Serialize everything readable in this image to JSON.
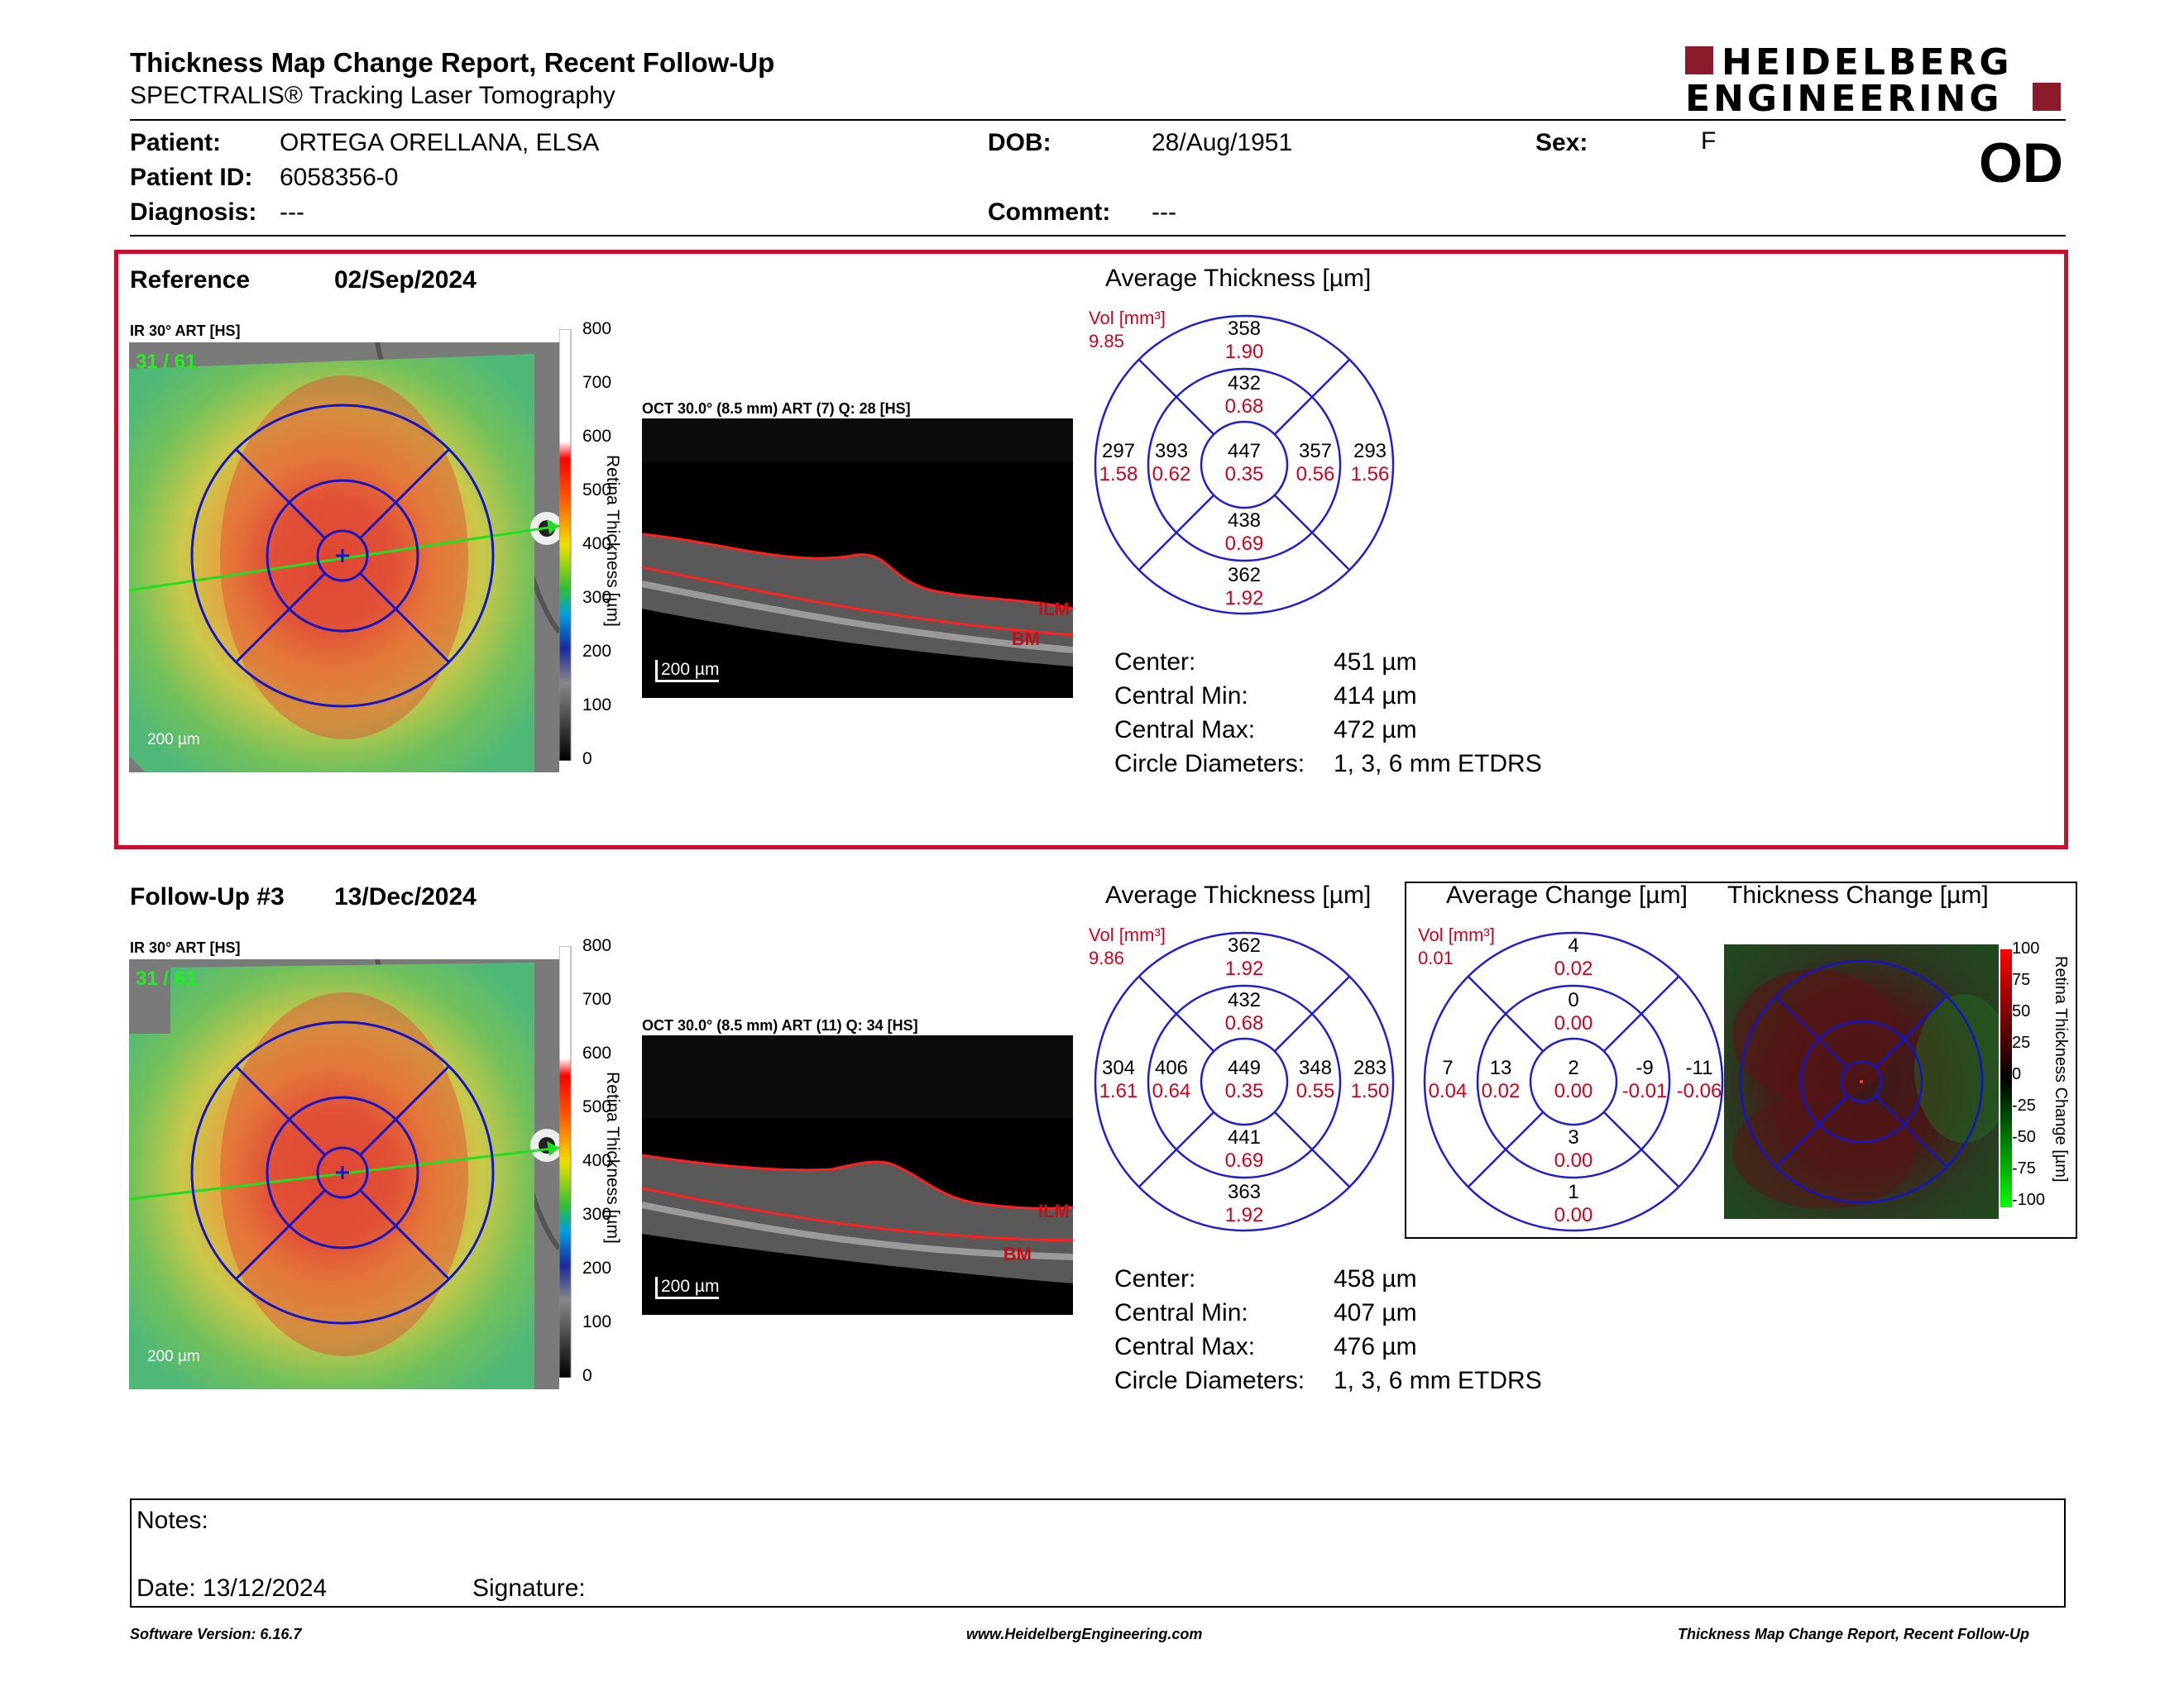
{
  "header": {
    "title": "Thickness Map Change Report, Recent Follow-Up",
    "subtitle": "SPECTRALIS® Tracking Laser Tomography",
    "logo_line1": "HEIDELBERG",
    "logo_line2": "ENGINEERING",
    "eye": "OD"
  },
  "patient": {
    "patient_label": "Patient:",
    "patient_value": "ORTEGA ORELLANA, ELSA",
    "id_label": "Patient ID:",
    "id_value": "6058356-0",
    "diagnosis_label": "Diagnosis:",
    "diagnosis_value": "---",
    "dob_label": "DOB:",
    "dob_value": "28/Aug/1951",
    "comment_label": "Comment:",
    "comment_value": "---",
    "sex_label": "Sex:",
    "sex_value": "F"
  },
  "reference": {
    "label": "Reference",
    "date": "02/Sep/2024",
    "ir_label": "IR 30° ART [HS]",
    "frames": "31 / 61",
    "scale_bar": "200 µm",
    "oct_label": "OCT 30.0° (8.5 mm) ART (7) Q: 28 [HS]",
    "oct_scale": "200 µm",
    "ilm": "ILM",
    "bm": "BM",
    "avg_title": "Average Thickness [µm]",
    "vol_label": "Vol [mm³]",
    "vol_value": "9.85",
    "etdrs": {
      "outer_top": [
        "358",
        "1.90"
      ],
      "inner_top": [
        "432",
        "0.68"
      ],
      "outer_left": [
        "297",
        "1.58"
      ],
      "inner_left": [
        "393",
        "0.62"
      ],
      "center": [
        "447",
        "0.35"
      ],
      "inner_right": [
        "357",
        "0.56"
      ],
      "outer_right": [
        "293",
        "1.56"
      ],
      "inner_bottom": [
        "438",
        "0.69"
      ],
      "outer_bottom": [
        "362",
        "1.92"
      ]
    },
    "stats": [
      {
        "label": "Center:",
        "value": "451 µm"
      },
      {
        "label": "Central Min:",
        "value": "414 µm"
      },
      {
        "label": "Central Max:",
        "value": "472 µm"
      },
      {
        "label": "Circle Diameters:",
        "value": "1, 3, 6 mm ETDRS"
      }
    ]
  },
  "followup": {
    "label": "Follow-Up #3",
    "date": "13/Dec/2024",
    "ir_label": "IR 30° ART [HS]",
    "frames": "31 / 61",
    "scale_bar": "200 µm",
    "oct_label": "OCT 30.0° (8.5 mm) ART (11) Q: 34 [HS]",
    "oct_scale": "200 µm",
    "ilm": "ILM",
    "bm": "BM",
    "avg_title": "Average Thickness [µm]",
    "vol_label": "Vol [mm³]",
    "vol_value": "9.86",
    "etdrs": {
      "outer_top": [
        "362",
        "1.92"
      ],
      "inner_top": [
        "432",
        "0.68"
      ],
      "outer_left": [
        "304",
        "1.61"
      ],
      "inner_left": [
        "406",
        "0.64"
      ],
      "center": [
        "449",
        "0.35"
      ],
      "inner_right": [
        "348",
        "0.55"
      ],
      "outer_right": [
        "283",
        "1.50"
      ],
      "inner_bottom": [
        "441",
        "0.69"
      ],
      "outer_bottom": [
        "363",
        "1.92"
      ]
    },
    "stats": [
      {
        "label": "Center:",
        "value": "458 µm"
      },
      {
        "label": "Central Min:",
        "value": "407 µm"
      },
      {
        "label": "Central Max:",
        "value": "476 µm"
      },
      {
        "label": "Circle Diameters:",
        "value": "1, 3, 6 mm ETDRS"
      }
    ],
    "change_title": "Average Change [µm]",
    "change_vol_label": "Vol [mm³]",
    "change_vol_value": "0.01",
    "change_etdrs": {
      "outer_top": [
        "4",
        "0.02"
      ],
      "inner_top": [
        "0",
        "0.00"
      ],
      "outer_left": [
        "7",
        "0.04"
      ],
      "inner_left": [
        "13",
        "0.02"
      ],
      "center": [
        "2",
        "0.00"
      ],
      "inner_right": [
        "-9",
        "-0.01"
      ],
      "outer_right": [
        "-11",
        "-0.06"
      ],
      "inner_bottom": [
        "3",
        "0.00"
      ],
      "outer_bottom": [
        "1",
        "0.00"
      ]
    },
    "thickness_change_title": "Thickness Change [µm]",
    "change_scale_title": "Retina Thickness Change [µm]",
    "change_ticks": [
      "100",
      "75",
      "50",
      "25",
      "0",
      "-25",
      "-50",
      "-75",
      "-100"
    ]
  },
  "scale_ticks": [
    "800",
    "700",
    "600",
    "500",
    "400",
    "300",
    "200",
    "100",
    "0"
  ],
  "scale_title": "Retina Thickness [µm]",
  "notes": {
    "notes_label": "Notes:",
    "date_label": "Date: 13/12/2024",
    "signature_label": "Signature:"
  },
  "footer": {
    "software": "Software Version: 6.16.7",
    "website": "www.HeidelbergEngineering.com",
    "report": "Thickness Map Change Report, Recent Follow-Up"
  },
  "colors": {
    "accent_red": "#c8102e",
    "etdrs_blue": "#1f1fd0",
    "volume_red": "#d0021b",
    "logo_red": "#8b1a2b"
  }
}
